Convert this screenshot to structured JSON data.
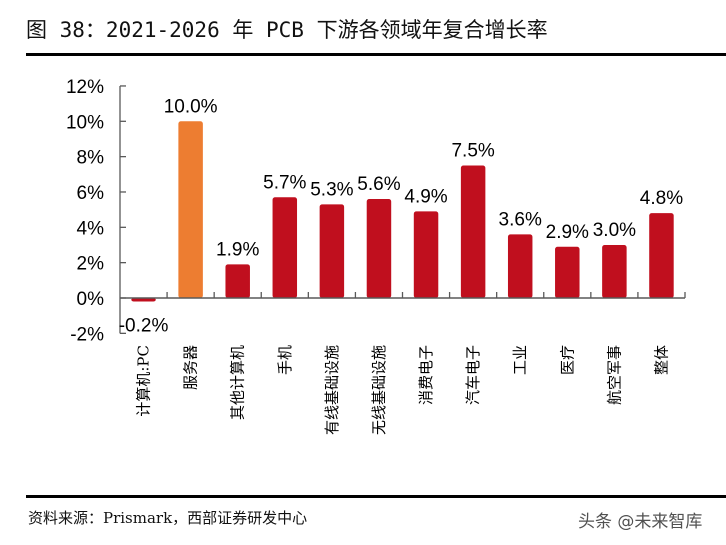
{
  "figure": {
    "title": "图 38：2021-2026 年 PCB 下游各领域年复合增长率",
    "source": "资料来源：Prismark，西部证券研发中心",
    "watermark": "头条 @未来智库"
  },
  "colors": {
    "bar_default": "#C00F1E",
    "bar_highlight": "#ED7D31",
    "axis": "#595959"
  },
  "chart_data": {
    "type": "bar",
    "title": "2021-2026 年 PCB 下游各领域年复合增长率",
    "xlabel": "",
    "ylabel": "",
    "categories": [
      "计算机:PC",
      "服务器",
      "其他计算机",
      "手机",
      "有线基础设施",
      "无线基础设施",
      "消费电子",
      "汽车电子",
      "工业",
      "医疗",
      "航空军事",
      "整体"
    ],
    "values": [
      -0.2,
      10.0,
      1.9,
      5.7,
      5.3,
      5.6,
      4.9,
      7.5,
      3.6,
      2.9,
      3.0,
      4.8
    ],
    "data_labels": [
      "-0.2%",
      "10.0%",
      "1.9%",
      "5.7%",
      "5.3%",
      "5.6%",
      "4.9%",
      "7.5%",
      "3.6%",
      "2.9%",
      "3.0%",
      "4.8%"
    ],
    "highlight_index": 1,
    "ylim": [
      -2,
      12
    ],
    "yticks": [
      -2,
      0,
      2,
      4,
      6,
      8,
      10,
      12
    ],
    "ytick_labels": [
      "-2%",
      "0%",
      "2%",
      "4%",
      "6%",
      "8%",
      "10%",
      "12%"
    ],
    "grid": false,
    "legend": "none",
    "unit": "%"
  }
}
